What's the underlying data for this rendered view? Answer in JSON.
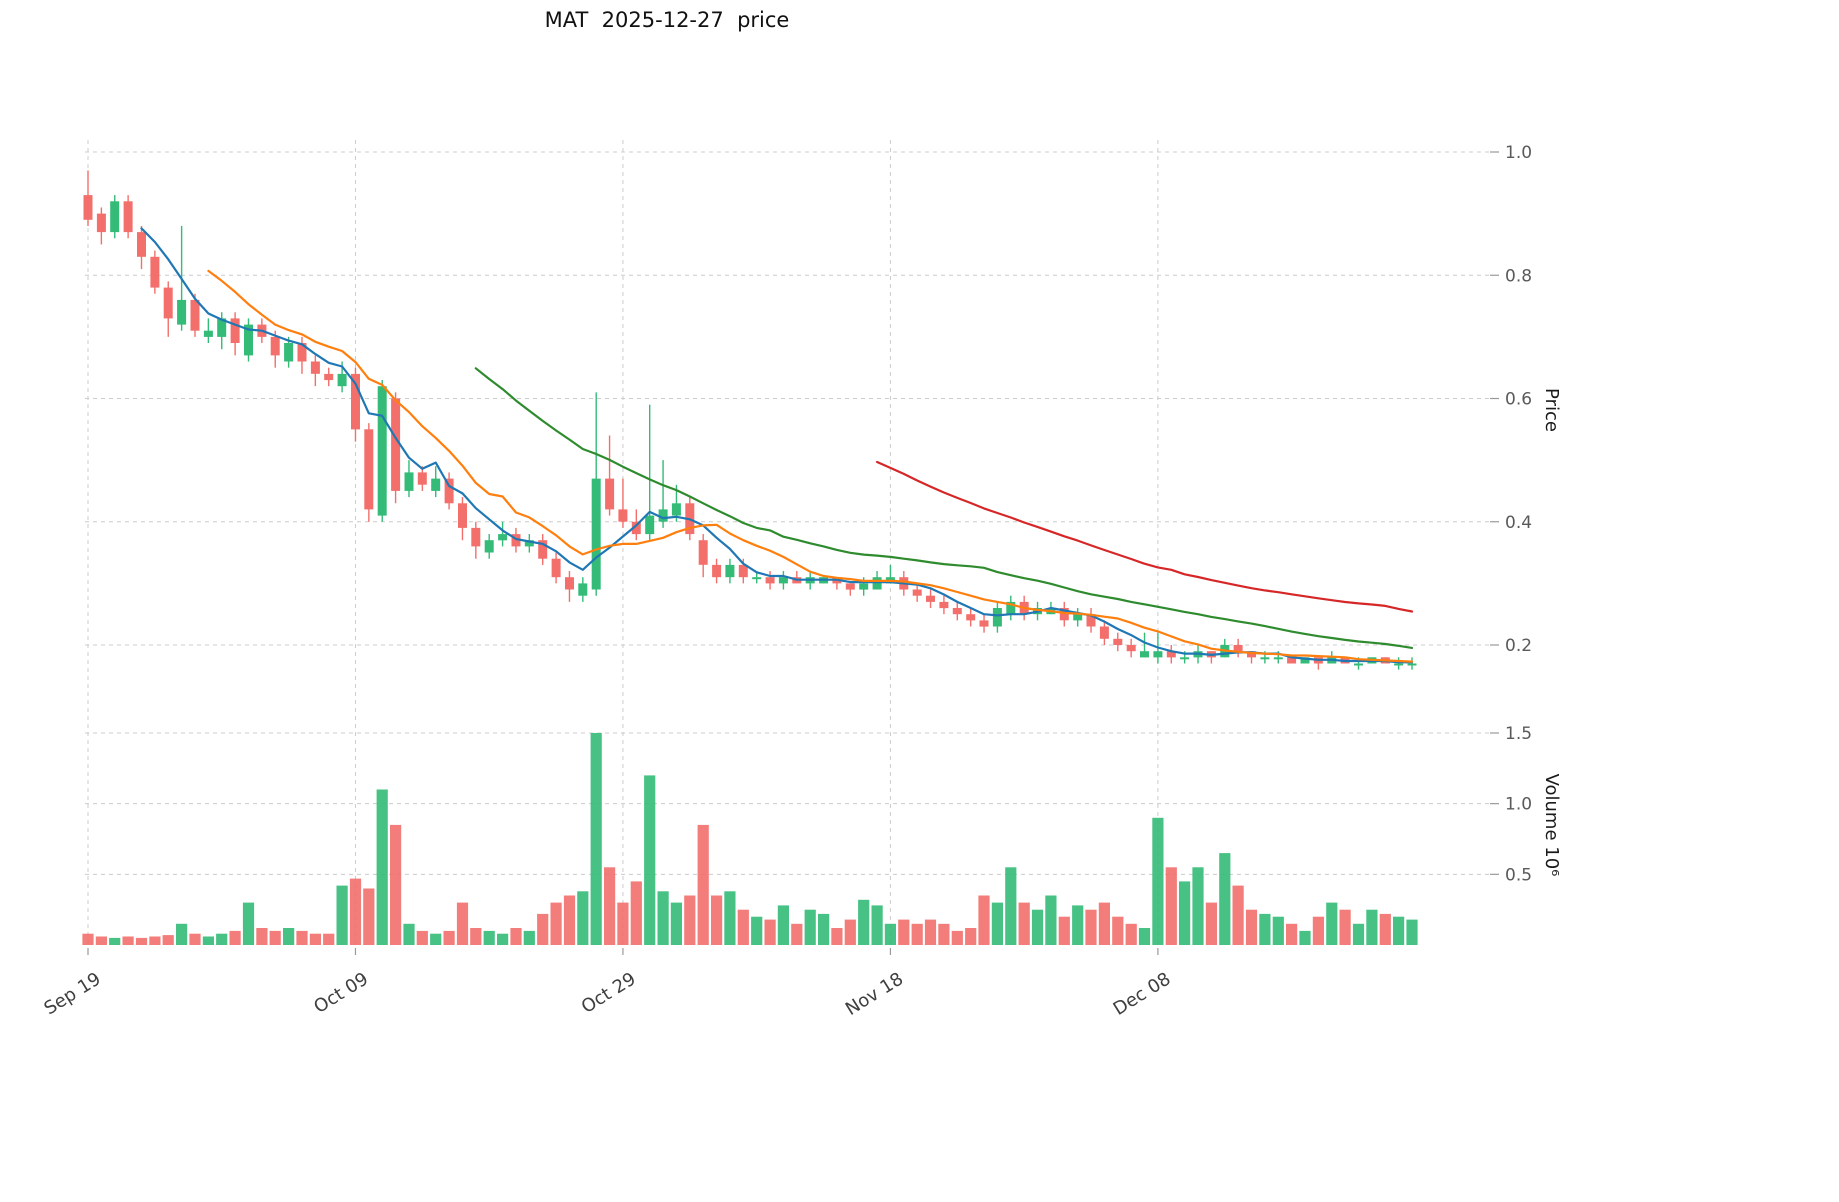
{
  "title": "MAT  2025-12-27  price",
  "axes": {
    "price_label": "Price",
    "volume_label": "Volume  10⁶",
    "price_ticks": [
      {
        "value": 0.2,
        "label": "0.2"
      },
      {
        "value": 0.4,
        "label": "0.4"
      },
      {
        "value": 0.6,
        "label": "0.6"
      },
      {
        "value": 0.8,
        "label": "0.8"
      },
      {
        "value": 1.0,
        "label": "1.0"
      }
    ],
    "volume_ticks": [
      {
        "value": 0.5,
        "label": "0.5"
      },
      {
        "value": 1.0,
        "label": "1.0"
      },
      {
        "value": 1.5,
        "label": "1.5"
      }
    ],
    "x_ticks": [
      {
        "index": 0,
        "label": "Sep 19"
      },
      {
        "index": 20,
        "label": "Oct 09"
      },
      {
        "index": 40,
        "label": "Oct 29"
      },
      {
        "index": 60,
        "label": "Nov 18"
      },
      {
        "index": 80,
        "label": "Dec 08"
      }
    ]
  },
  "style": {
    "up_color": "#33bb77",
    "down_color": "#f26f6b",
    "ma_colors": [
      "#1f77b4",
      "#ff7f0e",
      "#2e8b2e",
      "#d62728"
    ],
    "grid_color": "#cccccc",
    "tick_color": "#5a5a5a",
    "date_tick_color": "#3f3f3f"
  },
  "chart_data": {
    "type": "candlestick",
    "title": "MAT  2025-12-27  price",
    "xlabel": "",
    "ylabel": "Price",
    "ylabel_volume": "Volume 10⁶",
    "volume_unit": "10^6",
    "price_ylim": [
      0.11,
      1.02
    ],
    "volume_ylim": [
      0,
      1.65
    ],
    "grid": true,
    "x_tick_interval_days": 20,
    "last_date_in_title": "2025-12-27",
    "moving_average_periods": [
      5,
      10,
      30,
      60
    ],
    "points": 100,
    "open": [
      0.93,
      0.9,
      0.87,
      0.92,
      0.87,
      0.83,
      0.78,
      0.72,
      0.76,
      0.7,
      0.7,
      0.73,
      0.67,
      0.72,
      0.7,
      0.66,
      0.69,
      0.66,
      0.64,
      0.62,
      0.64,
      0.55,
      0.41,
      0.6,
      0.45,
      0.48,
      0.45,
      0.47,
      0.43,
      0.39,
      0.35,
      0.37,
      0.38,
      0.36,
      0.37,
      0.34,
      0.31,
      0.28,
      0.29,
      0.47,
      0.42,
      0.4,
      0.38,
      0.4,
      0.41,
      0.43,
      0.37,
      0.33,
      0.31,
      0.33,
      0.31,
      0.31,
      0.3,
      0.31,
      0.3,
      0.3,
      0.31,
      0.3,
      0.29,
      0.29,
      0.3,
      0.31,
      0.29,
      0.28,
      0.27,
      0.26,
      0.25,
      0.24,
      0.23,
      0.25,
      0.27,
      0.25,
      0.25,
      0.26,
      0.24,
      0.25,
      0.23,
      0.21,
      0.2,
      0.18,
      0.18,
      0.19,
      0.18,
      0.18,
      0.19,
      0.18,
      0.2,
      0.19,
      0.18,
      0.18,
      0.18,
      0.17,
      0.18,
      0.17,
      0.18,
      0.17,
      0.17,
      0.18,
      0.17,
      0.17
    ],
    "high": [
      0.97,
      0.91,
      0.93,
      0.93,
      0.88,
      0.84,
      0.79,
      0.88,
      0.77,
      0.73,
      0.74,
      0.74,
      0.73,
      0.73,
      0.71,
      0.7,
      0.7,
      0.67,
      0.65,
      0.66,
      0.65,
      0.56,
      0.63,
      0.61,
      0.5,
      0.49,
      0.49,
      0.48,
      0.44,
      0.4,
      0.38,
      0.4,
      0.39,
      0.38,
      0.38,
      0.35,
      0.32,
      0.31,
      0.61,
      0.54,
      0.47,
      0.42,
      0.59,
      0.5,
      0.46,
      0.44,
      0.38,
      0.34,
      0.34,
      0.34,
      0.32,
      0.32,
      0.32,
      0.32,
      0.32,
      0.31,
      0.31,
      0.3,
      0.31,
      0.32,
      0.33,
      0.32,
      0.3,
      0.29,
      0.28,
      0.27,
      0.26,
      0.25,
      0.27,
      0.28,
      0.28,
      0.27,
      0.27,
      0.27,
      0.26,
      0.26,
      0.24,
      0.22,
      0.21,
      0.22,
      0.22,
      0.2,
      0.19,
      0.2,
      0.19,
      0.21,
      0.21,
      0.19,
      0.19,
      0.19,
      0.18,
      0.18,
      0.18,
      0.19,
      0.18,
      0.18,
      0.18,
      0.18,
      0.18,
      0.18
    ],
    "low": [
      0.88,
      0.85,
      0.86,
      0.86,
      0.81,
      0.77,
      0.7,
      0.71,
      0.7,
      0.69,
      0.68,
      0.67,
      0.66,
      0.69,
      0.65,
      0.65,
      0.64,
      0.62,
      0.62,
      0.61,
      0.53,
      0.4,
      0.4,
      0.43,
      0.44,
      0.45,
      0.44,
      0.42,
      0.37,
      0.34,
      0.34,
      0.36,
      0.35,
      0.35,
      0.33,
      0.3,
      0.27,
      0.27,
      0.28,
      0.41,
      0.39,
      0.37,
      0.37,
      0.39,
      0.4,
      0.37,
      0.31,
      0.3,
      0.3,
      0.3,
      0.3,
      0.29,
      0.29,
      0.3,
      0.29,
      0.3,
      0.29,
      0.28,
      0.28,
      0.29,
      0.3,
      0.28,
      0.27,
      0.26,
      0.25,
      0.24,
      0.23,
      0.22,
      0.22,
      0.24,
      0.24,
      0.24,
      0.25,
      0.23,
      0.23,
      0.22,
      0.2,
      0.19,
      0.18,
      0.18,
      0.17,
      0.17,
      0.17,
      0.17,
      0.17,
      0.18,
      0.18,
      0.17,
      0.17,
      0.17,
      0.17,
      0.17,
      0.16,
      0.17,
      0.17,
      0.16,
      0.17,
      0.17,
      0.16,
      0.16
    ],
    "close": [
      0.89,
      0.87,
      0.92,
      0.87,
      0.83,
      0.78,
      0.73,
      0.76,
      0.71,
      0.71,
      0.73,
      0.69,
      0.72,
      0.7,
      0.67,
      0.69,
      0.66,
      0.64,
      0.63,
      0.64,
      0.55,
      0.42,
      0.62,
      0.45,
      0.48,
      0.46,
      0.47,
      0.43,
      0.39,
      0.36,
      0.37,
      0.38,
      0.36,
      0.37,
      0.34,
      0.31,
      0.29,
      0.3,
      0.47,
      0.42,
      0.4,
      0.38,
      0.41,
      0.42,
      0.43,
      0.38,
      0.33,
      0.31,
      0.33,
      0.31,
      0.31,
      0.3,
      0.31,
      0.3,
      0.31,
      0.31,
      0.3,
      0.29,
      0.3,
      0.31,
      0.31,
      0.29,
      0.28,
      0.27,
      0.26,
      0.25,
      0.24,
      0.23,
      0.26,
      0.27,
      0.25,
      0.26,
      0.26,
      0.24,
      0.25,
      0.23,
      0.21,
      0.2,
      0.19,
      0.19,
      0.19,
      0.18,
      0.18,
      0.19,
      0.18,
      0.2,
      0.19,
      0.18,
      0.18,
      0.18,
      0.17,
      0.18,
      0.17,
      0.18,
      0.17,
      0.17,
      0.18,
      0.17,
      0.17,
      0.17
    ],
    "volume": [
      0.08,
      0.06,
      0.05,
      0.06,
      0.05,
      0.06,
      0.07,
      0.15,
      0.08,
      0.06,
      0.08,
      0.1,
      0.3,
      0.12,
      0.1,
      0.12,
      0.1,
      0.08,
      0.08,
      0.42,
      0.47,
      0.4,
      1.1,
      0.85,
      0.15,
      0.1,
      0.08,
      0.1,
      0.3,
      0.12,
      0.1,
      0.08,
      0.12,
      0.1,
      0.22,
      0.3,
      0.35,
      0.38,
      1.5,
      0.55,
      0.3,
      0.45,
      1.2,
      0.38,
      0.3,
      0.35,
      0.85,
      0.35,
      0.38,
      0.25,
      0.2,
      0.18,
      0.28,
      0.15,
      0.25,
      0.22,
      0.12,
      0.18,
      0.32,
      0.28,
      0.15,
      0.18,
      0.15,
      0.18,
      0.15,
      0.1,
      0.12,
      0.35,
      0.3,
      0.55,
      0.3,
      0.25,
      0.35,
      0.2,
      0.28,
      0.25,
      0.3,
      0.2,
      0.15,
      0.12,
      0.9,
      0.55,
      0.45,
      0.55,
      0.3,
      0.65,
      0.42,
      0.25,
      0.22,
      0.2,
      0.15,
      0.1,
      0.2,
      0.3,
      0.25,
      0.15,
      0.25,
      0.22,
      0.2,
      0.18
    ]
  }
}
